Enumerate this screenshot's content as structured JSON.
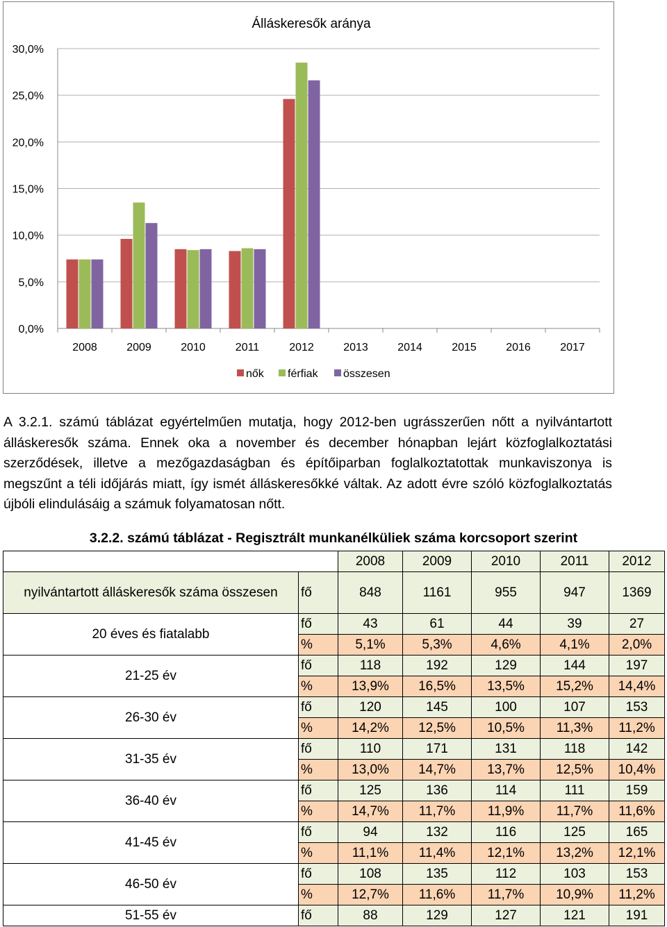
{
  "chart_data": {
    "type": "bar",
    "title": "Álláskeresők aránya",
    "categories": [
      "2008",
      "2009",
      "2010",
      "2011",
      "2012",
      "2013",
      "2014",
      "2015",
      "2016",
      "2017"
    ],
    "series": [
      {
        "name": "nők",
        "color": "#c0504d",
        "values": [
          7.4,
          9.6,
          8.5,
          8.3,
          24.6,
          null,
          null,
          null,
          null,
          null
        ]
      },
      {
        "name": "férfiak",
        "color": "#9bbb59",
        "values": [
          7.4,
          13.5,
          8.4,
          8.6,
          28.5,
          null,
          null,
          null,
          null,
          null
        ]
      },
      {
        "name": "összesen",
        "color": "#8064a2",
        "values": [
          7.4,
          11.3,
          8.5,
          8.5,
          26.6,
          null,
          null,
          null,
          null,
          null
        ]
      }
    ],
    "yticks": [
      "0,0%",
      "5,0%",
      "10,0%",
      "15,0%",
      "20,0%",
      "25,0%",
      "30,0%"
    ],
    "ylim": [
      0,
      30
    ],
    "grid": true,
    "legend": "bottom"
  },
  "paragraph": "A 3.2.1. számú táblázat egyértelműen mutatja, hogy 2012-ben ugrásszerűen nőtt a nyilvántartott álláskeresők száma. Ennek oka a november és december hónapban lejárt közfoglalkoztatási szerződések, illetve a mezőgazdaságban és építőiparban foglalkoztatottak munkaviszonya is megszűnt a téli időjárás miatt, így ismét álláskeresőkké váltak. Az adott évre szóló közfoglalkoztatás újbóli elindulásáig a számuk folyamatosan nőtt.",
  "table": {
    "title": "3.2.2. számú táblázat - Regisztrált munkanélküliek száma korcsoport szerint",
    "years": [
      "2008",
      "2009",
      "2010",
      "2011",
      "2012"
    ],
    "total": {
      "label": "nyilvántartott álláskeresők száma összesen",
      "unit": "fő",
      "values": [
        "848",
        "1161",
        "955",
        "947",
        "1369"
      ]
    },
    "groups": [
      {
        "label": "20 éves és fiatalabb",
        "count": [
          "43",
          "61",
          "44",
          "39",
          "27"
        ],
        "pct": [
          "5,1%",
          "5,3%",
          "4,6%",
          "4,1%",
          "2,0%"
        ]
      },
      {
        "label": "21-25 év",
        "count": [
          "118",
          "192",
          "129",
          "144",
          "197"
        ],
        "pct": [
          "13,9%",
          "16,5%",
          "13,5%",
          "15,2%",
          "14,4%"
        ]
      },
      {
        "label": "26-30 év",
        "count": [
          "120",
          "145",
          "100",
          "107",
          "153"
        ],
        "pct": [
          "14,2%",
          "12,5%",
          "10,5%",
          "11,3%",
          "11,2%"
        ]
      },
      {
        "label": "31-35 év",
        "count": [
          "110",
          "171",
          "131",
          "118",
          "142"
        ],
        "pct": [
          "13,0%",
          "14,7%",
          "13,7%",
          "12,5%",
          "10,4%"
        ]
      },
      {
        "label": "36-40 év",
        "count": [
          "125",
          "136",
          "114",
          "111",
          "159"
        ],
        "pct": [
          "14,7%",
          "11,7%",
          "11,9%",
          "11,7%",
          "11,6%"
        ]
      },
      {
        "label": "41-45 év",
        "count": [
          "94",
          "132",
          "116",
          "125",
          "165"
        ],
        "pct": [
          "11,1%",
          "11,4%",
          "12,1%",
          "13,2%",
          "12,1%"
        ]
      },
      {
        "label": "46-50 év",
        "count": [
          "108",
          "135",
          "112",
          "103",
          "153"
        ],
        "pct": [
          "12,7%",
          "11,6%",
          "11,7%",
          "10,9%",
          "11,2%"
        ]
      }
    ],
    "last": {
      "label": "51-55 év",
      "unit": "fő",
      "values": [
        "88",
        "129",
        "127",
        "121",
        "191"
      ]
    },
    "unit_count": "fő",
    "unit_pct": "%"
  }
}
